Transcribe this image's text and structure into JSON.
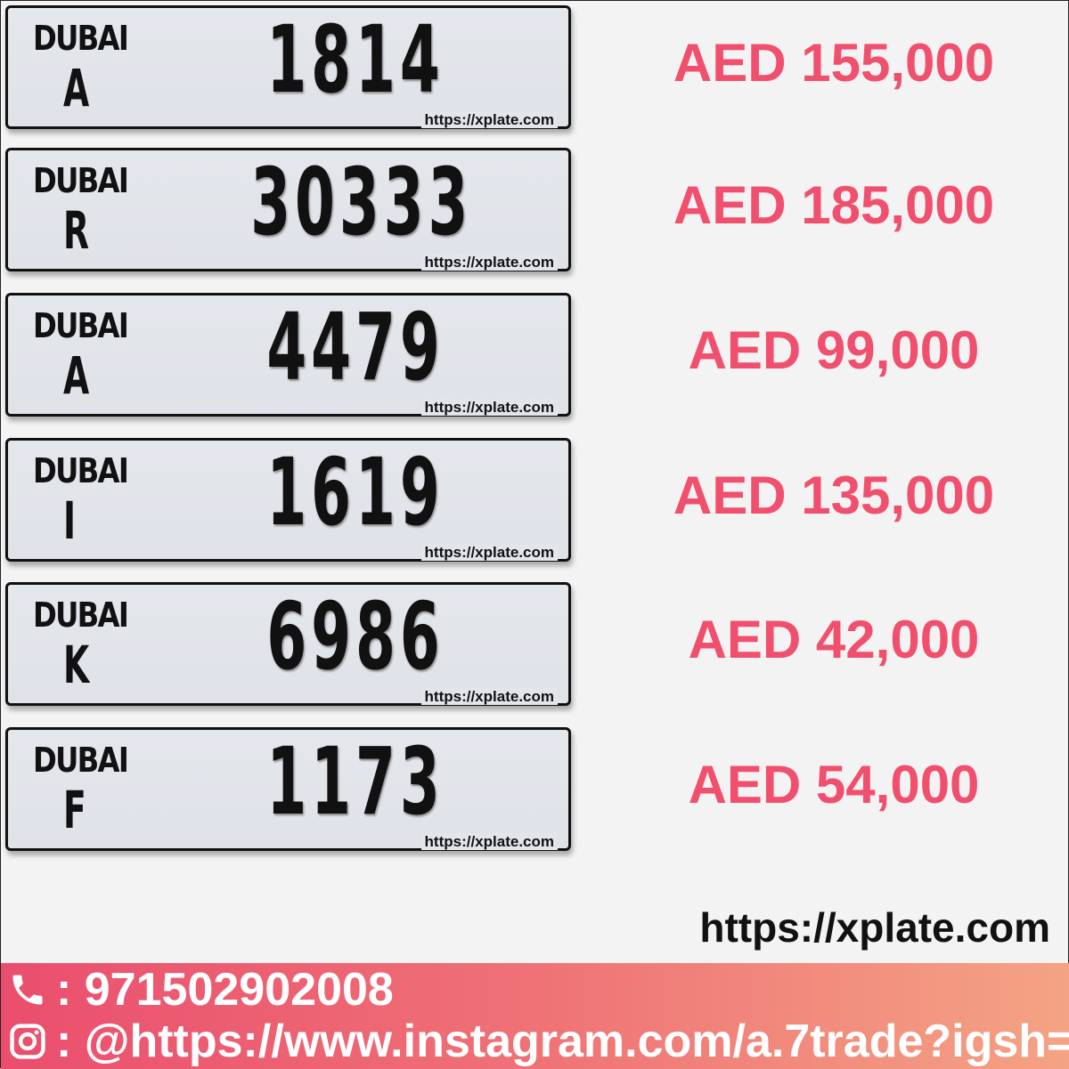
{
  "listings": [
    {
      "emirate": "DUBAI",
      "code": "A",
      "number": "1814",
      "watermark": "https://xplate.com",
      "price": "AED 155,000"
    },
    {
      "emirate": "DUBAI",
      "code": "R",
      "number": "30333",
      "watermark": "https://xplate.com",
      "price": "AED 185,000"
    },
    {
      "emirate": "DUBAI",
      "code": "A",
      "number": "4479",
      "watermark": "https://xplate.com",
      "price": "AED 99,000"
    },
    {
      "emirate": "DUBAI",
      "code": "I",
      "number": "1619",
      "watermark": "https://xplate.com",
      "price": "AED 135,000"
    },
    {
      "emirate": "DUBAI",
      "code": "K",
      "number": "6986",
      "watermark": "https://xplate.com",
      "price": "AED 42,000"
    },
    {
      "emirate": "DUBAI",
      "code": "F",
      "number": "1173",
      "watermark": "https://xplate.com",
      "price": "AED 54,000"
    }
  ],
  "footer": {
    "phone": ": 971502902008",
    "instagram": ": @https://www.instagram.com/a.7trade?igsh=",
    "overlay": "https://xplate.com",
    "phone_icon": "phone-icon",
    "instagram_icon": "instagram-icon"
  },
  "colors": {
    "price": "#f0506e",
    "footer_start": "#ea4e6e",
    "footer_end": "#f4a384"
  }
}
